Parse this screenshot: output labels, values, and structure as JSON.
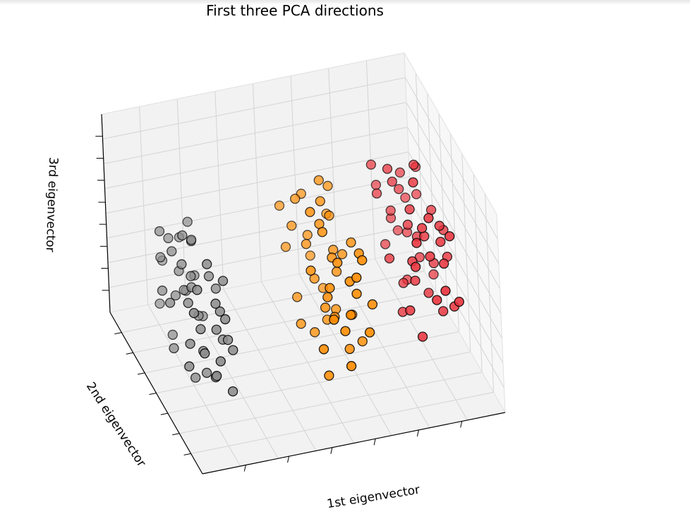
{
  "chart_data": {
    "type": "scatter",
    "title": "First three PCA directions",
    "xlabel": "1st eigenvector",
    "ylabel": "2nd eigenvector",
    "zlabel": "3rd eigenvector",
    "projection": "3d",
    "grid": true,
    "colors": {
      "class_0": "#8c8c8c",
      "class_1": "#ff8c00",
      "class_2": "#e8323c",
      "pane": "#f2f2f2",
      "grid": "#d4d4d4",
      "edge": "#000000"
    },
    "series": [
      {
        "class": 0,
        "color": "#8c8c8c",
        "points": [
          [
            -2.7,
            0.35,
            0.2
          ],
          [
            -2.85,
            0.2,
            0.05
          ],
          [
            -2.6,
            -0.1,
            0.15
          ],
          [
            -2.5,
            0.25,
            -0.05
          ],
          [
            -2.45,
            -0.2,
            0.0
          ],
          [
            -2.3,
            0.1,
            0.2
          ],
          [
            -2.2,
            -0.3,
            0.05
          ],
          [
            -2.1,
            0.4,
            -0.15
          ],
          [
            -2.0,
            0.0,
            0.25
          ],
          [
            -1.9,
            -0.35,
            -0.1
          ],
          [
            -2.8,
            -0.4,
            0.3
          ],
          [
            -2.65,
            0.45,
            -0.25
          ],
          [
            -2.55,
            0.05,
            0.35
          ],
          [
            -2.4,
            -0.45,
            -0.2
          ],
          [
            -2.35,
            0.3,
            0.1
          ],
          [
            -2.25,
            -0.05,
            -0.3
          ],
          [
            -2.15,
            0.2,
            0.4
          ],
          [
            -2.05,
            -0.25,
            0.15
          ],
          [
            -1.95,
            0.35,
            0.0
          ],
          [
            -1.85,
            -0.1,
            -0.2
          ],
          [
            -2.75,
            0.1,
            -0.35
          ],
          [
            -2.6,
            -0.3,
            0.4
          ],
          [
            -2.45,
            0.4,
            0.3
          ],
          [
            -2.3,
            -0.15,
            -0.4
          ],
          [
            -2.2,
            0.15,
            0.45
          ],
          [
            -2.1,
            -0.4,
            0.2
          ],
          [
            -2.0,
            0.25,
            -0.25
          ],
          [
            -1.9,
            -0.2,
            0.35
          ],
          [
            -2.9,
            0.0,
            0.1
          ],
          [
            -2.5,
            0.5,
            0.05
          ],
          [
            -2.35,
            -0.5,
            -0.05
          ],
          [
            -2.15,
            0.45,
            0.25
          ],
          [
            -2.05,
            -0.45,
            -0.35
          ],
          [
            -2.7,
            -0.2,
            -0.1
          ],
          [
            -2.4,
            0.15,
            0.5
          ],
          [
            -2.25,
            -0.35,
            0.3
          ],
          [
            -1.8,
            0.05,
            0.1
          ],
          [
            -2.55,
            0.3,
            -0.4
          ],
          [
            -2.85,
            -0.3,
            -0.2
          ],
          [
            -2.0,
            0.4,
            0.4
          ],
          [
            -2.3,
            -0.25,
            0.55
          ],
          [
            -2.6,
            0.2,
            0.35
          ],
          [
            -1.95,
            -0.3,
            -0.05
          ],
          [
            -2.45,
            -0.05,
            -0.5
          ],
          [
            -2.2,
            0.35,
            -0.1
          ],
          [
            -2.75,
            0.3,
            0.45
          ],
          [
            -2.1,
            -0.15,
            -0.45
          ],
          [
            -2.35,
            0.05,
            0.15
          ],
          [
            -1.85,
            0.3,
            -0.3
          ],
          [
            -2.65,
            -0.45,
            0.0
          ]
        ]
      },
      {
        "class": 1,
        "color": "#ff8c00",
        "points": [
          [
            0.2,
            0.5,
            0.3
          ],
          [
            0.4,
            -0.3,
            0.2
          ],
          [
            0.6,
            0.2,
            -0.1
          ],
          [
            0.8,
            -0.5,
            0.4
          ],
          [
            1.0,
            0.1,
            0.0
          ],
          [
            0.3,
            0.3,
            -0.3
          ],
          [
            0.5,
            -0.1,
            0.5
          ],
          [
            0.7,
            0.4,
            0.1
          ],
          [
            0.9,
            -0.2,
            -0.4
          ],
          [
            1.1,
            0.3,
            0.3
          ],
          [
            0.1,
            -0.4,
            -0.2
          ],
          [
            0.35,
            0.0,
            0.6
          ],
          [
            0.55,
            -0.45,
            -0.05
          ],
          [
            0.75,
            0.15,
            0.55
          ],
          [
            0.95,
            -0.35,
            0.15
          ],
          [
            1.15,
            -0.05,
            -0.25
          ],
          [
            0.25,
            0.45,
            0.0
          ],
          [
            0.45,
            0.1,
            -0.45
          ],
          [
            0.65,
            -0.25,
            0.35
          ],
          [
            0.85,
            0.5,
            -0.15
          ],
          [
            1.05,
            -0.4,
            0.45
          ],
          [
            1.25,
            0.2,
            0.05
          ],
          [
            0.15,
            -0.15,
            0.25
          ],
          [
            0.4,
            0.35,
            0.45
          ],
          [
            0.6,
            -0.5,
            -0.3
          ],
          [
            0.8,
            0.0,
            0.2
          ],
          [
            1.0,
            0.4,
            -0.35
          ],
          [
            1.2,
            -0.2,
            0.35
          ],
          [
            0.3,
            -0.3,
            -0.5
          ],
          [
            0.5,
            0.25,
            0.15
          ],
          [
            0.7,
            -0.1,
            -0.2
          ],
          [
            0.9,
            0.3,
            0.6
          ],
          [
            1.1,
            -0.45,
            -0.1
          ],
          [
            1.3,
            0.05,
            0.25
          ],
          [
            0.2,
            0.15,
            -0.4
          ],
          [
            0.45,
            -0.2,
            0.05
          ],
          [
            0.65,
            0.45,
            0.4
          ],
          [
            0.85,
            -0.3,
            -0.05
          ],
          [
            1.05,
            0.2,
            0.1
          ],
          [
            1.25,
            -0.15,
            -0.4
          ],
          [
            0.35,
            0.4,
            0.2
          ],
          [
            0.55,
            -0.05,
            -0.15
          ],
          [
            0.75,
            -0.4,
            0.3
          ],
          [
            0.95,
            0.1,
            -0.3
          ],
          [
            1.15,
            0.35,
            0.5
          ],
          [
            1.35,
            -0.3,
            0.0
          ],
          [
            0.25,
            -0.5,
            0.1
          ],
          [
            0.6,
            0.05,
            0.45
          ],
          [
            0.85,
            0.2,
            -0.45
          ],
          [
            1.2,
            0.45,
            0.2
          ]
        ]
      },
      {
        "class": 2,
        "color": "#e8323c",
        "points": [
          [
            2.2,
            0.3,
            0.4
          ],
          [
            2.4,
            -0.2,
            0.2
          ],
          [
            2.6,
            0.4,
            0.1
          ],
          [
            2.8,
            -0.1,
            0.3
          ],
          [
            3.0,
            0.2,
            -0.1
          ],
          [
            2.3,
            -0.4,
            0.5
          ],
          [
            2.5,
            0.1,
            -0.2
          ],
          [
            2.7,
            -0.3,
            0.6
          ],
          [
            2.9,
            0.35,
            0.0
          ],
          [
            3.1,
            -0.15,
            0.4
          ],
          [
            2.1,
            0.0,
            0.1
          ],
          [
            2.35,
            0.45,
            0.35
          ],
          [
            2.55,
            -0.05,
            0.5
          ],
          [
            2.75,
            0.25,
            -0.3
          ],
          [
            2.95,
            -0.35,
            0.25
          ],
          [
            3.15,
            0.05,
            -0.05
          ],
          [
            2.25,
            -0.25,
            -0.15
          ],
          [
            2.45,
            0.2,
            0.55
          ],
          [
            2.65,
            -0.45,
            0.05
          ],
          [
            2.85,
            0.4,
            0.45
          ],
          [
            3.05,
            -0.2,
            -0.25
          ],
          [
            3.25,
            0.15,
            0.3
          ],
          [
            2.15,
            0.35,
            0.6
          ],
          [
            2.4,
            -0.35,
            -0.3
          ],
          [
            2.6,
            0.05,
            0.3
          ],
          [
            2.8,
            -0.5,
            0.15
          ],
          [
            3.0,
            0.45,
            0.2
          ],
          [
            3.2,
            -0.3,
            -0.15
          ],
          [
            2.3,
            0.15,
            0.7
          ],
          [
            2.5,
            -0.15,
            0.0
          ],
          [
            2.7,
            0.3,
            0.4
          ],
          [
            2.9,
            -0.05,
            -0.2
          ],
          [
            3.1,
            0.3,
            0.55
          ],
          [
            3.3,
            -0.1,
            0.1
          ],
          [
            2.2,
            -0.45,
            0.35
          ],
          [
            2.45,
            0.4,
            -0.1
          ],
          [
            2.65,
            -0.2,
            0.45
          ],
          [
            2.85,
            0.1,
            0.15
          ],
          [
            3.05,
            -0.4,
            0.5
          ],
          [
            3.35,
            0.25,
            -0.3
          ],
          [
            2.35,
            0.0,
            -0.35
          ],
          [
            2.55,
            0.35,
            0.2
          ],
          [
            2.75,
            -0.25,
            0.25
          ],
          [
            2.95,
            0.2,
            0.65
          ],
          [
            3.15,
            -0.45,
            0.0
          ],
          [
            3.4,
            0.05,
            0.2
          ],
          [
            2.6,
            -0.1,
            0.75
          ],
          [
            2.8,
            0.45,
            -0.05
          ],
          [
            3.0,
            -0.25,
            0.35
          ],
          [
            3.2,
            0.4,
            0.25
          ]
        ]
      }
    ]
  }
}
